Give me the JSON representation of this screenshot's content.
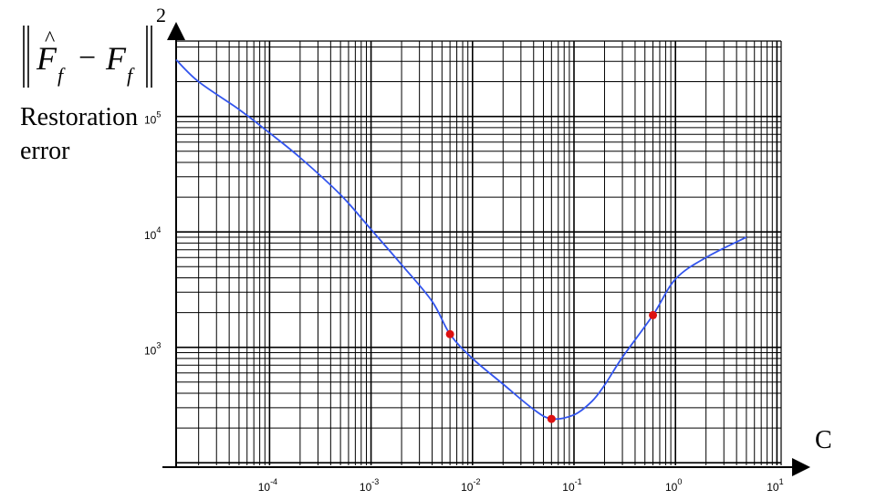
{
  "chart_data": {
    "type": "line",
    "xscale": "log",
    "yscale": "log",
    "x_axis_label": "C",
    "y_axis_formula": "‖F̂f − Ff‖²",
    "y_axis_label_lines": [
      "Restoration",
      "error"
    ],
    "x_tick_labels": [
      {
        "base": "10",
        "exp": "-4",
        "value": 0.0001
      },
      {
        "base": "10",
        "exp": "-3",
        "value": 0.001
      },
      {
        "base": "10",
        "exp": "-2",
        "value": 0.01
      },
      {
        "base": "10",
        "exp": "-1",
        "value": 0.1
      },
      {
        "base": "10",
        "exp": "0",
        "value": 1
      },
      {
        "base": "10",
        "exp": "1",
        "value": 10
      }
    ],
    "y_tick_labels": [
      {
        "base": "10",
        "exp": "3",
        "value": 1000
      },
      {
        "base": "10",
        "exp": "4",
        "value": 10000
      },
      {
        "base": "10",
        "exp": "5",
        "value": 100000
      }
    ],
    "xlim": [
      1.2e-05,
      11
    ],
    "ylim": [
      95,
      450000
    ],
    "grid": true,
    "series_color": "#3355ee",
    "marker_color": "#dd1111",
    "series": [
      {
        "points": [
          [
            1.2e-05,
            310000
          ],
          [
            2e-05,
            200000
          ],
          [
            5e-05,
            115000
          ],
          [
            0.0001,
            72000
          ],
          [
            0.0002,
            44000
          ],
          [
            0.0005,
            21000
          ],
          [
            0.001,
            10500
          ],
          [
            0.002,
            5200
          ],
          [
            0.004,
            2500
          ],
          [
            0.006,
            1300
          ],
          [
            0.01,
            800
          ],
          [
            0.02,
            480
          ],
          [
            0.04,
            290
          ],
          [
            0.06,
            240
          ],
          [
            0.1,
            260
          ],
          [
            0.15,
            340
          ],
          [
            0.2,
            470
          ],
          [
            0.3,
            820
          ],
          [
            0.6,
            1900
          ],
          [
            1.0,
            3900
          ],
          [
            2.0,
            6000
          ],
          [
            5.0,
            9000
          ]
        ]
      }
    ],
    "markers": [
      {
        "x": 0.006,
        "y": 1300
      },
      {
        "x": 0.06,
        "y": 240
      },
      {
        "x": 0.6,
        "y": 1900
      }
    ]
  }
}
